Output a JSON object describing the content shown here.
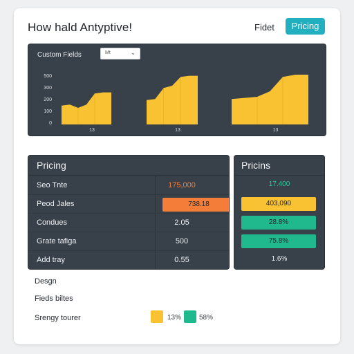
{
  "header": {
    "title": "How hald Antyptive!",
    "link_label": "Fidet",
    "button_label": "Pricing",
    "accent": "#22afc0"
  },
  "chart_panel": {
    "label": "Custom Fields",
    "select_value": "Mt",
    "select_icon": "chevron-down-icon"
  },
  "chart_data": {
    "type": "area",
    "y_ticks": [
      "500",
      "300",
      "200",
      "100",
      "0"
    ],
    "x_ticks": [
      "13",
      "13",
      "13"
    ],
    "ylim": [
      0,
      500
    ],
    "color": "#f9c233",
    "series": [
      {
        "x": [
          0,
          1,
          2,
          3,
          4,
          5,
          6
        ],
        "values": [
          170,
          180,
          150,
          180,
          280,
          290,
          290
        ]
      },
      {
        "x": [
          0,
          1,
          2,
          3,
          4,
          5,
          6
        ],
        "values": [
          220,
          230,
          330,
          350,
          430,
          440,
          440
        ]
      },
      {
        "x": [
          0,
          1,
          2,
          3,
          4,
          5,
          6
        ],
        "values": [
          230,
          240,
          250,
          300,
          430,
          450,
          450
        ]
      }
    ],
    "grid": false
  },
  "table": {
    "title": "Pricing",
    "rows": [
      {
        "name": "Seo Tnte",
        "value": "175,000",
        "value_color": "#f47d3a",
        "pill": false
      },
      {
        "name": "Peod Jales",
        "value": "738.18",
        "pill": true,
        "pill_color": "#f47d3a"
      },
      {
        "name": "Condues",
        "value": "2.05",
        "pill": false
      },
      {
        "name": "Grate tafiga",
        "value": "500",
        "pill": false
      },
      {
        "name": "Add tray",
        "value": "0.55",
        "pill": false
      }
    ]
  },
  "pricing": {
    "title": "Pricins",
    "rows": [
      {
        "value": "17.400",
        "value_color": "#2ec99a",
        "pill": false
      },
      {
        "value": "403,090",
        "pill": true,
        "pill_color": "#f9c233"
      },
      {
        "value": "28.8%",
        "pill": true,
        "pill_color": "#20b98d"
      },
      {
        "value": "75.8%",
        "pill": true,
        "pill_color": "#20b98d"
      },
      {
        "value": "1.6%",
        "value_color": "#eef1f3",
        "pill": false
      }
    ]
  },
  "bottom": {
    "items": [
      "Desgn",
      "Fieds biltes",
      "Srengy tourer"
    ],
    "legend": [
      {
        "label": "13%",
        "color": "#f9c233"
      },
      {
        "label": "58%",
        "color": "#20b98d"
      }
    ]
  }
}
